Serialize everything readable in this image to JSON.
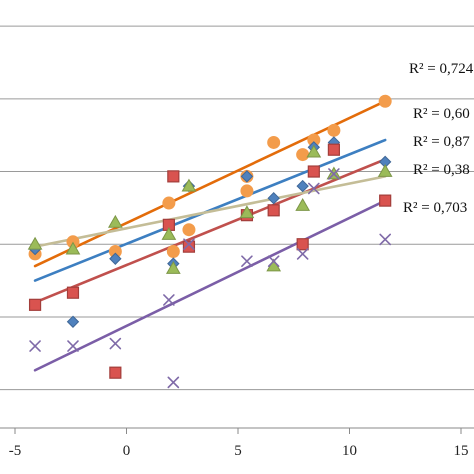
{
  "chart_data": {
    "type": "scatter",
    "title": "",
    "xlabel": "",
    "ylabel": "",
    "xlim": [
      -5,
      15
    ],
    "ylim": [
      -0.15,
      1.55
    ],
    "x_ticks": [
      -5,
      0,
      5,
      10,
      15
    ],
    "x_tick_labels": [
      "-5",
      "0",
      "5",
      "10",
      "15"
    ],
    "y_gridlines": [
      0,
      0.3,
      0.6,
      0.9,
      1.2,
      1.5
    ],
    "grid": true,
    "legend": "none",
    "series": [
      {
        "marker": "circle",
        "color": "#f39c4b",
        "points": [
          [
            -4.1,
            0.56
          ],
          [
            -2.4,
            0.61
          ],
          [
            -0.5,
            0.57
          ],
          [
            1.9,
            0.77
          ],
          [
            2.1,
            0.57
          ],
          [
            2.8,
            0.66
          ],
          [
            5.4,
            0.82
          ],
          [
            5.4,
            0.88
          ],
          [
            6.6,
            1.02
          ],
          [
            7.9,
            0.97
          ],
          [
            8.4,
            1.03
          ],
          [
            9.3,
            1.07
          ],
          [
            11.6,
            1.19
          ]
        ],
        "trend": [
          [
            -4.1,
            0.51
          ],
          [
            11.6,
            1.19
          ]
        ],
        "trend_color": "#e36c0a",
        "r2_label": "R² = 0,724"
      },
      {
        "marker": "diamond",
        "color": "#4f81bd",
        "points": [
          [
            -4.1,
            0.58
          ],
          [
            -2.4,
            0.28
          ],
          [
            -0.5,
            0.54
          ],
          [
            2.1,
            0.52
          ],
          [
            2.8,
            0.84
          ],
          [
            5.4,
            0.88
          ],
          [
            6.6,
            0.79
          ],
          [
            7.9,
            0.84
          ],
          [
            8.4,
            1.0
          ],
          [
            9.3,
            1.02
          ],
          [
            11.6,
            0.94
          ]
        ],
        "trend": [
          [
            -4.1,
            0.45
          ],
          [
            11.6,
            1.03
          ]
        ],
        "trend_color": "#3d7fc1",
        "r2_label": "R² = 0,60"
      },
      {
        "marker": "square",
        "color": "#d9534f",
        "points": [
          [
            -4.1,
            0.35
          ],
          [
            -2.4,
            0.4
          ],
          [
            -0.5,
            0.07
          ],
          [
            1.9,
            0.68
          ],
          [
            2.1,
            0.88
          ],
          [
            2.8,
            0.59
          ],
          [
            5.4,
            0.72
          ],
          [
            6.6,
            0.74
          ],
          [
            7.9,
            0.6
          ],
          [
            8.4,
            0.9
          ],
          [
            9.3,
            0.99
          ],
          [
            11.6,
            0.78
          ]
        ],
        "trend": [
          [
            -4.1,
            0.36
          ],
          [
            11.6,
            0.95
          ]
        ],
        "trend_color": "#c0504d",
        "r2_label": "R² = 0,87"
      },
      {
        "marker": "triangle",
        "color": "#9bbb59",
        "points": [
          [
            -4.1,
            0.6
          ],
          [
            -2.4,
            0.58
          ],
          [
            -0.5,
            0.69
          ],
          [
            1.9,
            0.64
          ],
          [
            2.1,
            0.5
          ],
          [
            2.8,
            0.84
          ],
          [
            5.4,
            0.73
          ],
          [
            6.6,
            0.51
          ],
          [
            7.9,
            0.76
          ],
          [
            8.4,
            0.98
          ],
          [
            9.3,
            0.89
          ],
          [
            11.6,
            0.9
          ]
        ],
        "trend": [
          [
            -4.1,
            0.59
          ],
          [
            11.6,
            0.88
          ]
        ],
        "trend_color": "#c4bd97",
        "r2_label": "R² = 0,38"
      },
      {
        "marker": "x",
        "color": "#7f6aa8",
        "points": [
          [
            -4.1,
            0.18
          ],
          [
            -2.4,
            0.18
          ],
          [
            -0.5,
            0.19
          ],
          [
            1.9,
            0.37
          ],
          [
            2.1,
            0.03
          ],
          [
            2.8,
            0.6
          ],
          [
            5.4,
            0.53
          ],
          [
            6.6,
            0.53
          ],
          [
            7.9,
            0.56
          ],
          [
            8.4,
            0.83
          ],
          [
            9.3,
            0.89
          ],
          [
            11.6,
            0.62
          ]
        ],
        "trend": [
          [
            -4.1,
            0.08
          ],
          [
            11.6,
            0.78
          ]
        ],
        "trend_color": "#7b5ea7",
        "r2_label": "R² = 0,703"
      }
    ]
  }
}
